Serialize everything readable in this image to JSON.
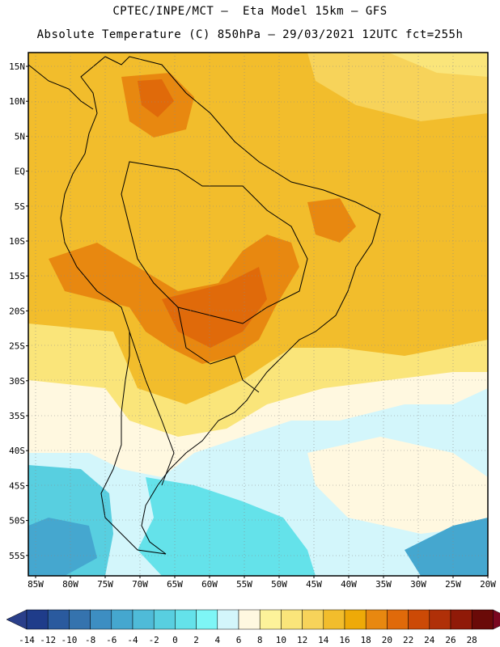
{
  "title_line1": "CPTEC/INPE/MCT –  Eta Model 15km – GFS",
  "title_line2": "Absolute Temperature (C) 850hPa – 29/03/2021 12UTC fct=255h",
  "lat_labels": [
    "15N",
    "10N",
    "5N",
    "EQ",
    "5S",
    "10S",
    "15S",
    "20S",
    "25S",
    "30S",
    "35S",
    "40S",
    "45S",
    "50S",
    "55S"
  ],
  "lon_labels": [
    "85W",
    "80W",
    "75W",
    "70W",
    "65W",
    "60W",
    "55W",
    "50W",
    "45W",
    "40W",
    "35W",
    "30W",
    "25W",
    "20W"
  ],
  "colorbar": {
    "labels": [
      "-14",
      "-12",
      "-10",
      "-8",
      "-6",
      "-4",
      "-2",
      "0",
      "2",
      "4",
      "6",
      "8",
      "10",
      "12",
      "14",
      "16",
      "18",
      "20",
      "22",
      "24",
      "26",
      "28"
    ],
    "colors": [
      "#1f3c8a",
      "#2a5a9e",
      "#3573ae",
      "#3d8ec2",
      "#45a7cf",
      "#4fbbd8",
      "#58cfe0",
      "#64e2ea",
      "#7ef6f6",
      "#d3f6fb",
      "#fff8e0",
      "#fdf39a",
      "#fae57a",
      "#f7d35a",
      "#f2bd2c",
      "#eeaa08",
      "#e88810",
      "#e06a0a",
      "#cc4a06",
      "#b03008",
      "#901a08",
      "#6a0a08"
    ],
    "under_color": "#2a3f8a",
    "over_color": "#7a0820"
  }
}
